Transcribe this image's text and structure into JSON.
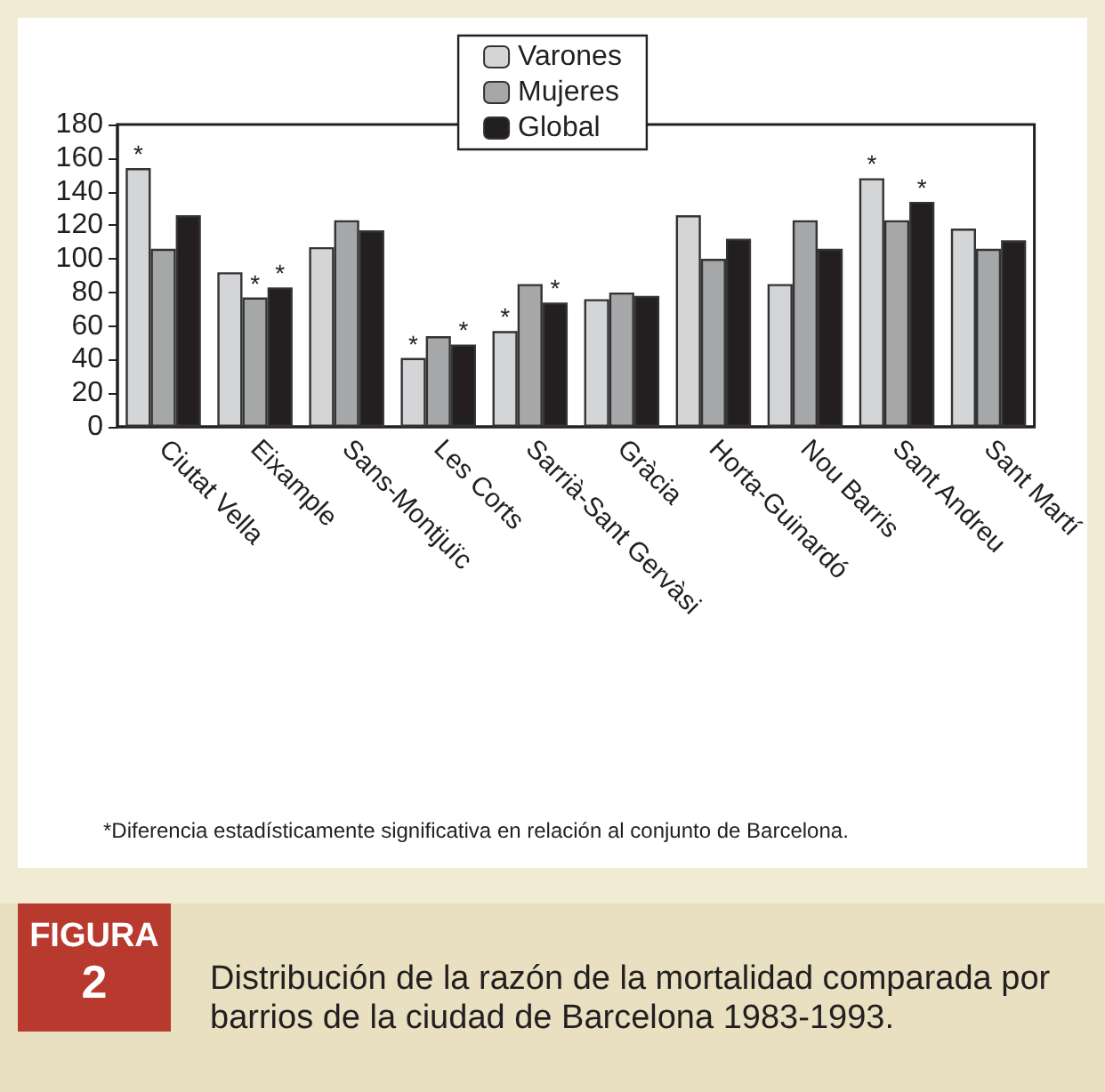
{
  "chart_data": {
    "type": "bar",
    "title": "Distribución de la razón de la mortalidad comparada por barrios de la ciudad de Barcelona 1983-1993.",
    "categories": [
      "Ciutat Vella",
      "Eixample",
      "Sans-Montjuïc",
      "Les Corts",
      "Sarrià-Sant Gervàsi",
      "Gràcia",
      "Horta-Guinardó",
      "Nou Barris",
      "Sant Andreu",
      "Sant Martí"
    ],
    "series": [
      {
        "name": "Varones",
        "color": "#d4d5d7",
        "values": [
          154,
          92,
          107,
          41,
          57,
          76,
          126,
          85,
          148,
          118
        ],
        "value_labels": [
          "*",
          null,
          null,
          "*",
          "*",
          null,
          null,
          null,
          "*",
          null
        ]
      },
      {
        "name": "Mujeres",
        "color": "#a6a7a9",
        "values": [
          106,
          77,
          123,
          54,
          85,
          80,
          100,
          123,
          123,
          106
        ],
        "value_labels": [
          null,
          "*",
          null,
          null,
          null,
          null,
          null,
          null,
          null,
          null
        ]
      },
      {
        "name": "Global",
        "color": "#231f20",
        "values": [
          126,
          83,
          117,
          49,
          74,
          78,
          112,
          106,
          134,
          111
        ],
        "value_labels": [
          null,
          "*",
          null,
          "*",
          "*",
          null,
          null,
          null,
          "*",
          null
        ]
      }
    ],
    "ylim": [
      0,
      180
    ],
    "yticks": [
      0,
      20,
      40,
      60,
      80,
      100,
      120,
      140,
      160,
      180
    ],
    "grid": false,
    "legend": "top",
    "annotations": [
      "*Diferencia estadísticamente significativa en relación al conjunto de Barcelona.",
      "FIGURA",
      "2"
    ]
  }
}
